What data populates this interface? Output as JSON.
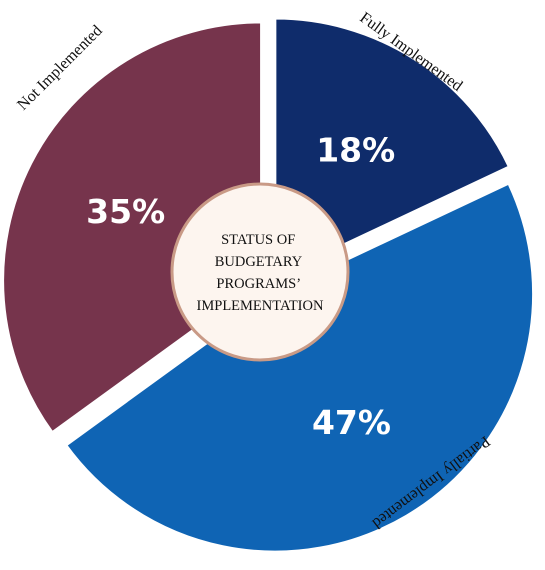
{
  "chart_data": {
    "type": "pie",
    "center_label": [
      "STATUS OF",
      "BUDGETARY",
      "PROGRAMS’",
      "IMPLEMENTATION"
    ],
    "slices": [
      {
        "label": "Fully Implemented",
        "value": 18,
        "value_label": "18%",
        "color": "#0f2c6b"
      },
      {
        "label": "Partially Implemented",
        "value": 47,
        "value_label": "47%",
        "color": "#0f64b4"
      },
      {
        "label": "Not Implemented",
        "value": 35,
        "value_label": "35%",
        "color": "#76344c"
      }
    ],
    "center_fill": "#fdf5ef",
    "center_stroke": "#c99a86"
  }
}
